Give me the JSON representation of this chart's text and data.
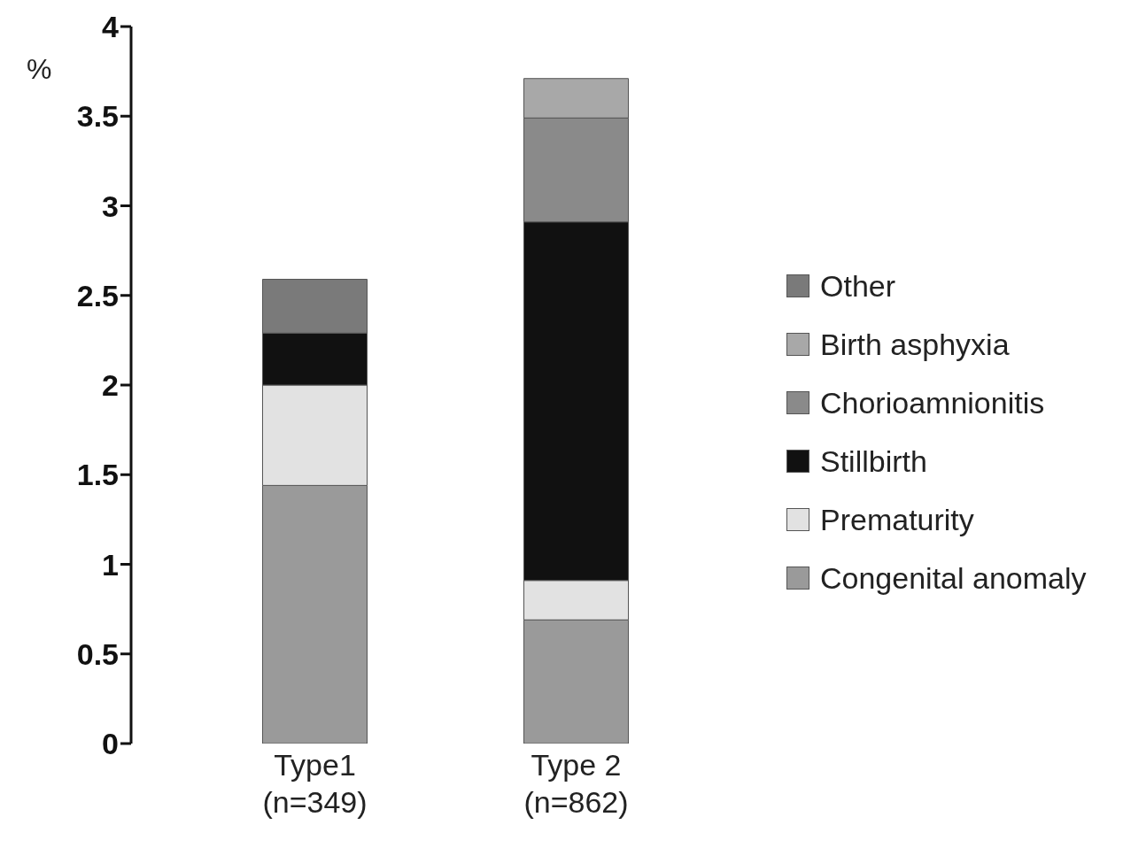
{
  "chart_data": {
    "type": "bar",
    "stacked": true,
    "ylabel": "%",
    "categories": [
      "Type1\n(n=349)",
      "Type 2\n(n=862)"
    ],
    "series": [
      {
        "name": "Congenital anomaly",
        "color": "#9a9a9a",
        "values": [
          1.44,
          0.69
        ]
      },
      {
        "name": "Prematurity",
        "color": "#e2e2e2",
        "values": [
          0.56,
          0.22
        ]
      },
      {
        "name": "Stillbirth",
        "color": "#111111",
        "values": [
          0.29,
          2.0
        ]
      },
      {
        "name": "Chorioamnionitis",
        "color": "#8a8a8a",
        "values": [
          0,
          0.58
        ]
      },
      {
        "name": "Birth asphyxia",
        "color": "#a8a8a8",
        "values": [
          0,
          0.22
        ]
      },
      {
        "name": "Other",
        "color": "#7a7a7a",
        "values": [
          0.3,
          0
        ]
      }
    ],
    "ylim": [
      0,
      4
    ],
    "yticks": [
      0,
      0.5,
      1,
      1.5,
      2,
      2.5,
      3,
      3.5,
      4
    ],
    "grid": false,
    "legend": "right"
  }
}
